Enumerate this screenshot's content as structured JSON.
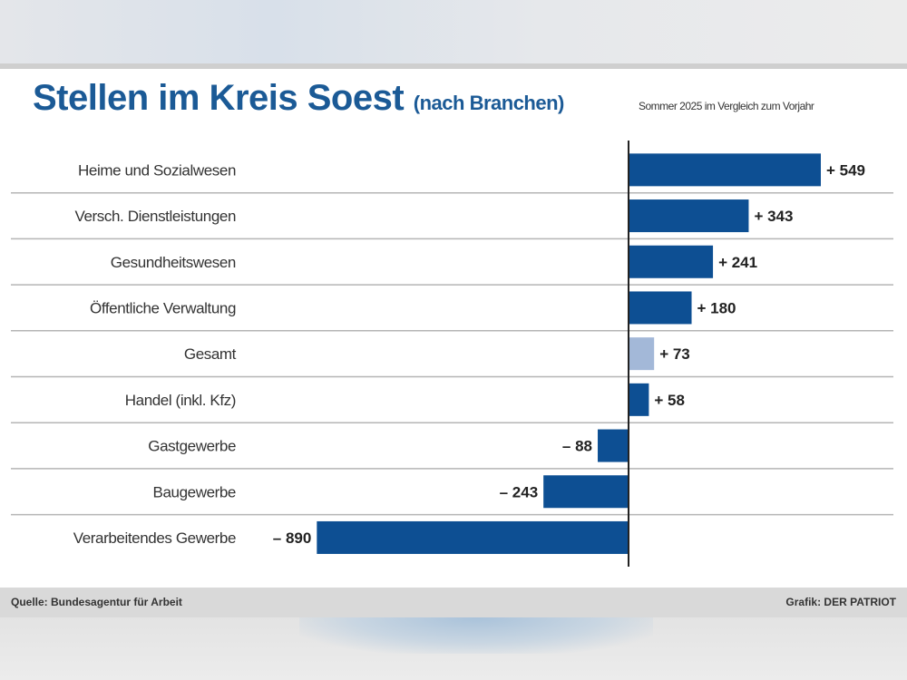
{
  "title": "Stellen im Kreis Soest",
  "title_suffix": "(nach Branchen)",
  "subtitle": "Sommer 2025 im Vergleich zum Vorjahr",
  "source": "Quelle: Bundesagentur für Arbeit",
  "credit": "Grafik: DER PATRIOT",
  "chart_data": {
    "type": "bar",
    "orientation": "horizontal",
    "categories": [
      "Heime und Sozialwesen",
      "Versch. Dienstleistungen",
      "Gesundheitswesen",
      "Öffentliche Verwaltung",
      "Gesamt",
      "Handel (inkl. Kfz)",
      "Gastgewerbe",
      "Baugewerbe",
      "Verarbeitendes Gewerbe"
    ],
    "values": [
      549,
      343,
      241,
      180,
      73,
      58,
      -88,
      -243,
      -890
    ],
    "labels": [
      "+ 549",
      "+ 343",
      "+ 241",
      "+ 180",
      "+ 73",
      "+ 58",
      "– 88",
      "– 243",
      "– 890"
    ],
    "highlight_category": "Gesamt",
    "colors": {
      "bar": "#0d4f93",
      "highlight": "#a3b8d8",
      "grid": "#b5b5b5",
      "axis": "#222222",
      "title": "#1b5a96"
    },
    "grid": true,
    "legend": "none"
  }
}
